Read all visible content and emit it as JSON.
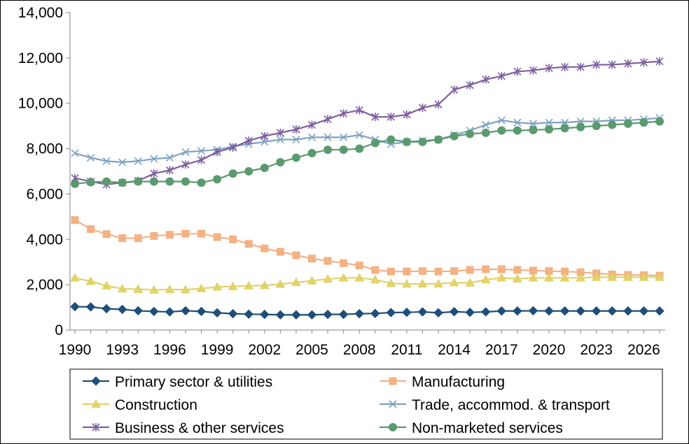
{
  "chart_data": {
    "type": "line",
    "title": "",
    "xlabel": "",
    "ylabel": "",
    "x": [
      1990,
      1991,
      1992,
      1993,
      1994,
      1995,
      1996,
      1997,
      1998,
      1999,
      2000,
      2001,
      2002,
      2003,
      2004,
      2005,
      2006,
      2007,
      2008,
      2009,
      2010,
      2011,
      2012,
      2013,
      2014,
      2015,
      2016,
      2017,
      2018,
      2019,
      2020,
      2021,
      2022,
      2023,
      2024,
      2025,
      2026,
      2027
    ],
    "xlim": [
      1990,
      2027
    ],
    "x_tick_labels": [
      "1990",
      "1993",
      "1996",
      "1999",
      "2002",
      "2005",
      "2008",
      "2011",
      "2014",
      "2017",
      "2020",
      "2023",
      "2026"
    ],
    "ylim": [
      0,
      14000
    ],
    "y_tick_labels": [
      "0",
      "2,000",
      "4,000",
      "6,000",
      "8,000",
      "10,000",
      "12,000",
      "14,000"
    ],
    "grid": false,
    "legend_position": "bottom",
    "series": [
      {
        "name": "Primary sector & utilities",
        "color": "#1F4E79",
        "marker": "diamond",
        "values": [
          1030,
          1020,
          940,
          910,
          850,
          820,
          800,
          850,
          820,
          760,
          720,
          700,
          690,
          670,
          670,
          670,
          690,
          690,
          720,
          730,
          770,
          780,
          800,
          760,
          810,
          780,
          800,
          840,
          840,
          850,
          840,
          840,
          840,
          840,
          840,
          840,
          840,
          840
        ]
      },
      {
        "name": "Manufacturing",
        "color": "#F4B183",
        "marker": "square",
        "values": [
          4850,
          4450,
          4230,
          4050,
          4050,
          4150,
          4200,
          4250,
          4250,
          4100,
          4000,
          3800,
          3600,
          3450,
          3300,
          3150,
          3050,
          2950,
          2850,
          2650,
          2580,
          2580,
          2600,
          2580,
          2600,
          2650,
          2680,
          2680,
          2650,
          2620,
          2600,
          2580,
          2550,
          2500,
          2450,
          2430,
          2420,
          2400
        ]
      },
      {
        "name": "Construction",
        "color": "#E1D36A",
        "marker": "triangle",
        "values": [
          2300,
          2150,
          1950,
          1820,
          1800,
          1770,
          1790,
          1780,
          1830,
          1900,
          1920,
          1950,
          1970,
          2020,
          2100,
          2170,
          2250,
          2300,
          2300,
          2220,
          2060,
          2030,
          2040,
          2040,
          2090,
          2080,
          2220,
          2300,
          2260,
          2300,
          2300,
          2300,
          2300,
          2330,
          2330,
          2330,
          2330,
          2330
        ]
      },
      {
        "name": "Trade, accommod. & transport",
        "color": "#7DA2C0",
        "marker": "x",
        "values": [
          7800,
          7600,
          7450,
          7400,
          7450,
          7550,
          7600,
          7850,
          7900,
          7950,
          8100,
          8200,
          8300,
          8400,
          8400,
          8500,
          8500,
          8500,
          8600,
          8400,
          8200,
          8300,
          8350,
          8400,
          8600,
          8800,
          9050,
          9250,
          9150,
          9100,
          9150,
          9150,
          9200,
          9200,
          9250,
          9250,
          9300,
          9350
        ]
      },
      {
        "name": "Business & other services",
        "color": "#7E5FA0",
        "marker": "star",
        "values": [
          6700,
          6550,
          6420,
          6500,
          6580,
          6900,
          7050,
          7300,
          7500,
          7850,
          8050,
          8350,
          8550,
          8700,
          8850,
          9050,
          9300,
          9550,
          9700,
          9400,
          9400,
          9500,
          9800,
          9950,
          10600,
          10800,
          11050,
          11200,
          11400,
          11450,
          11550,
          11600,
          11600,
          11700,
          11700,
          11750,
          11800,
          11850
        ]
      },
      {
        "name": "Non-marketed services",
        "color": "#5B9A6F",
        "marker": "circle",
        "values": [
          6450,
          6520,
          6550,
          6500,
          6550,
          6550,
          6550,
          6550,
          6500,
          6650,
          6900,
          7000,
          7150,
          7400,
          7600,
          7800,
          7950,
          7950,
          8000,
          8250,
          8400,
          8300,
          8300,
          8400,
          8550,
          8650,
          8700,
          8800,
          8800,
          8820,
          8850,
          8900,
          8950,
          9000,
          9050,
          9100,
          9150,
          9200
        ]
      }
    ]
  }
}
